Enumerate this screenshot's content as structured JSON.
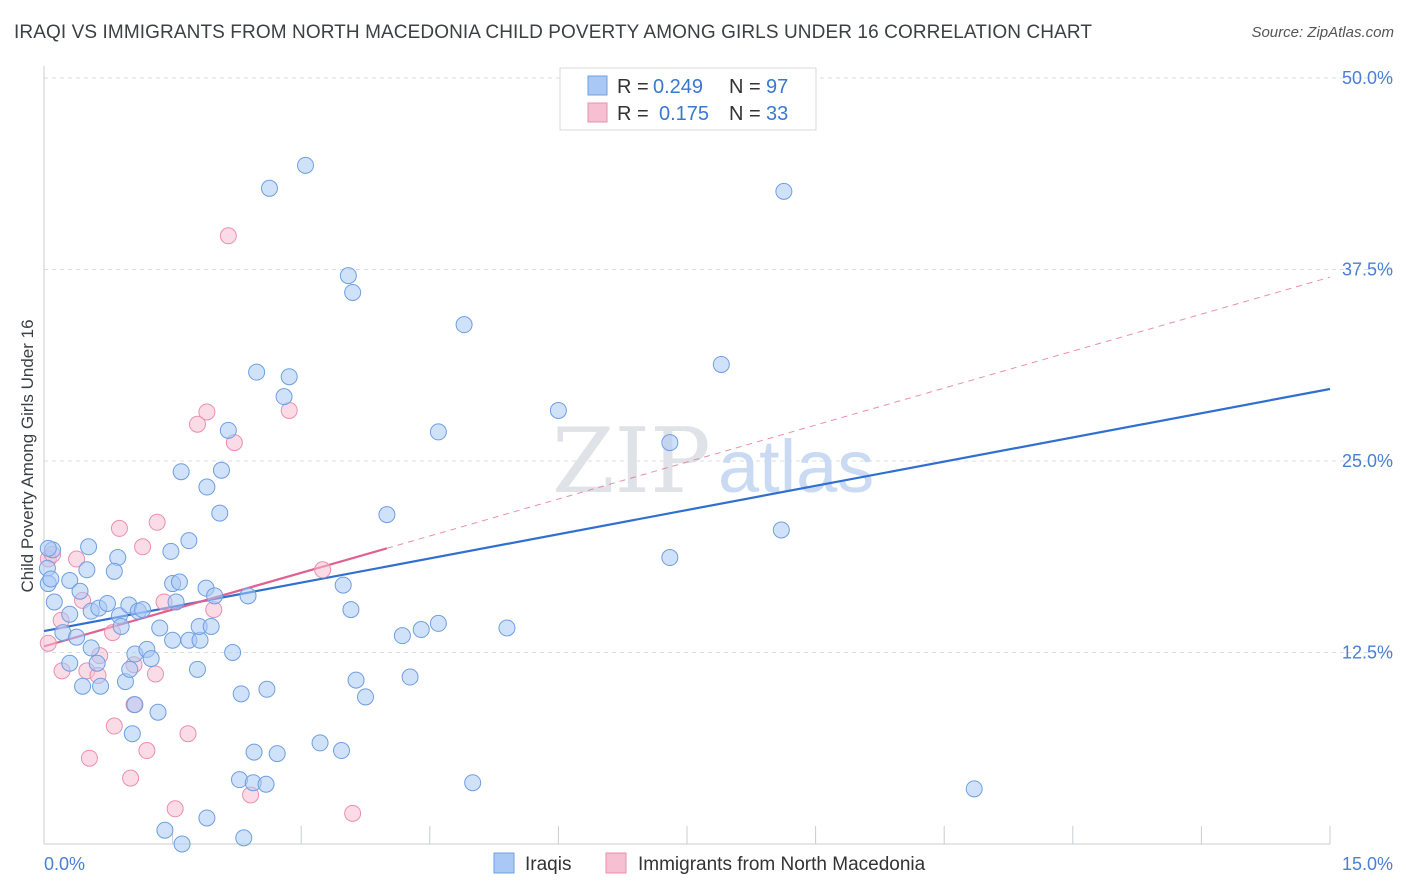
{
  "title": "IRAQI VS IMMIGRANTS FROM NORTH MACEDONIA CHILD POVERTY AMONG GIRLS UNDER 16 CORRELATION CHART",
  "source": "Source: ZipAtlas.com",
  "watermark": {
    "zip": "ZIP",
    "atlas": "atlas"
  },
  "colors": {
    "iraqi_fill": "#a9c8f5",
    "iraqi_stroke": "#6f9fe0",
    "iraqi_line": "#2f6fd0",
    "macedonia_fill": "#f7c0d2",
    "macedonia_stroke": "#ea8fb0",
    "macedonia_line": "#e0608f",
    "tick_label": "#4a7fd4",
    "grid": "#d8dde6"
  },
  "legend": {
    "r_label": "R =",
    "n_label": "N =",
    "iraqi_r": "0.249",
    "iraqi_n": "97",
    "macedonia_r": "0.175",
    "macedonia_n": "33"
  },
  "chart_data": {
    "type": "scatter",
    "title": "IRAQI VS IMMIGRANTS FROM NORTH MACEDONIA CHILD POVERTY AMONG GIRLS UNDER 16 CORRELATION CHART",
    "xlabel": "",
    "ylabel": "Child Poverty Among Girls Under 16",
    "xlim": [
      0,
      15
    ],
    "ylim": [
      0,
      50
    ],
    "x_tick_labels": [
      "0.0%",
      "15.0%"
    ],
    "y_ticks": [
      12.5,
      25.0,
      37.5,
      50.0
    ],
    "y_tick_labels": [
      "12.5%",
      "25.0%",
      "37.5%",
      "50.0%"
    ],
    "series": [
      {
        "name": "Iraqis",
        "r": 0.249,
        "n": 97,
        "trend": {
          "x": [
            0,
            15
          ],
          "y": [
            13.9,
            29.7
          ],
          "style": "solid"
        },
        "points": [
          [
            3.05,
            44.3
          ],
          [
            2.63,
            42.8
          ],
          [
            8.63,
            42.6
          ],
          [
            3.55,
            37.1
          ],
          [
            3.6,
            36.0
          ],
          [
            4.9,
            33.9
          ],
          [
            2.48,
            30.8
          ],
          [
            2.86,
            30.5
          ],
          [
            7.9,
            31.3
          ],
          [
            6.0,
            28.3
          ],
          [
            2.8,
            29.2
          ],
          [
            2.15,
            27.0
          ],
          [
            4.6,
            26.9
          ],
          [
            7.3,
            26.2
          ],
          [
            1.6,
            24.3
          ],
          [
            2.07,
            24.4
          ],
          [
            1.9,
            23.3
          ],
          [
            2.05,
            21.6
          ],
          [
            4.0,
            21.5
          ],
          [
            8.6,
            20.5
          ],
          [
            0.1,
            19.2
          ],
          [
            0.52,
            19.4
          ],
          [
            0.86,
            18.7
          ],
          [
            1.48,
            19.1
          ],
          [
            1.69,
            19.8
          ],
          [
            7.3,
            18.7
          ],
          [
            0.04,
            18.0
          ],
          [
            0.05,
            17.0
          ],
          [
            0.3,
            17.2
          ],
          [
            0.5,
            17.9
          ],
          [
            0.82,
            17.8
          ],
          [
            1.5,
            17.0
          ],
          [
            1.58,
            17.1
          ],
          [
            1.89,
            16.7
          ],
          [
            3.49,
            16.9
          ],
          [
            0.12,
            15.8
          ],
          [
            0.3,
            15.0
          ],
          [
            0.42,
            16.5
          ],
          [
            0.55,
            15.2
          ],
          [
            0.64,
            15.4
          ],
          [
            0.74,
            15.7
          ],
          [
            0.88,
            14.9
          ],
          [
            0.99,
            15.6
          ],
          [
            1.1,
            15.2
          ],
          [
            1.15,
            15.3
          ],
          [
            1.54,
            15.8
          ],
          [
            1.99,
            16.2
          ],
          [
            2.38,
            16.2
          ],
          [
            3.58,
            15.3
          ],
          [
            0.22,
            13.8
          ],
          [
            0.38,
            13.5
          ],
          [
            0.55,
            12.8
          ],
          [
            0.62,
            11.8
          ],
          [
            0.9,
            14.2
          ],
          [
            1.06,
            12.4
          ],
          [
            1.2,
            12.7
          ],
          [
            1.25,
            12.1
          ],
          [
            1.35,
            14.1
          ],
          [
            1.5,
            13.3
          ],
          [
            1.69,
            13.3
          ],
          [
            1.82,
            13.3
          ],
          [
            1.81,
            14.2
          ],
          [
            1.95,
            14.2
          ],
          [
            2.2,
            12.5
          ],
          [
            4.18,
            13.6
          ],
          [
            4.4,
            14.0
          ],
          [
            4.6,
            14.4
          ],
          [
            5.4,
            14.1
          ],
          [
            0.3,
            11.8
          ],
          [
            0.45,
            10.3
          ],
          [
            0.66,
            10.3
          ],
          [
            0.95,
            10.6
          ],
          [
            1.0,
            11.4
          ],
          [
            1.79,
            11.4
          ],
          [
            2.3,
            9.8
          ],
          [
            2.6,
            10.1
          ],
          [
            3.64,
            10.7
          ],
          [
            3.75,
            9.6
          ],
          [
            4.27,
            10.9
          ],
          [
            1.06,
            9.1
          ],
          [
            1.33,
            8.6
          ],
          [
            1.03,
            7.2
          ],
          [
            3.22,
            6.6
          ],
          [
            3.47,
            6.1
          ],
          [
            2.45,
            6.0
          ],
          [
            2.72,
            5.9
          ],
          [
            2.28,
            4.2
          ],
          [
            2.44,
            4.0
          ],
          [
            2.59,
            3.9
          ],
          [
            5.0,
            4.0
          ],
          [
            10.85,
            3.6
          ],
          [
            1.41,
            0.9
          ],
          [
            1.9,
            1.7
          ],
          [
            2.33,
            0.4
          ],
          [
            1.61,
            0.0
          ],
          [
            0.05,
            19.3
          ],
          [
            0.08,
            17.3
          ]
        ]
      },
      {
        "name": "Immigrants from North Macedonia",
        "r": 0.175,
        "n": 33,
        "trend": {
          "x": [
            0,
            4.0
          ],
          "y": [
            12.9,
            19.3
          ],
          "style": "solid"
        },
        "trend_extended": {
          "x": [
            4.0,
            15
          ],
          "y": [
            19.3,
            37.0
          ],
          "style": "dashed"
        },
        "points": [
          [
            2.15,
            39.7
          ],
          [
            1.9,
            28.2
          ],
          [
            2.86,
            28.3
          ],
          [
            1.79,
            27.4
          ],
          [
            2.22,
            26.2
          ],
          [
            1.32,
            21.0
          ],
          [
            0.88,
            20.6
          ],
          [
            1.15,
            19.4
          ],
          [
            0.05,
            18.6
          ],
          [
            0.38,
            18.6
          ],
          [
            3.25,
            17.9
          ],
          [
            0.45,
            15.9
          ],
          [
            1.4,
            15.8
          ],
          [
            1.98,
            15.3
          ],
          [
            0.2,
            14.6
          ],
          [
            0.8,
            13.8
          ],
          [
            0.05,
            13.1
          ],
          [
            0.65,
            12.3
          ],
          [
            1.05,
            11.7
          ],
          [
            0.21,
            11.3
          ],
          [
            0.5,
            11.3
          ],
          [
            0.63,
            11.0
          ],
          [
            1.3,
            11.1
          ],
          [
            1.05,
            9.1
          ],
          [
            0.82,
            7.7
          ],
          [
            1.68,
            7.2
          ],
          [
            0.53,
            5.6
          ],
          [
            1.2,
            6.1
          ],
          [
            1.01,
            4.3
          ],
          [
            2.41,
            3.2
          ],
          [
            1.53,
            2.3
          ],
          [
            3.6,
            2.0
          ],
          [
            0.1,
            18.9
          ]
        ]
      }
    ]
  },
  "bottom_legend": {
    "iraqi": "Iraqis",
    "macedonia": "Immigrants from North Macedonia"
  }
}
